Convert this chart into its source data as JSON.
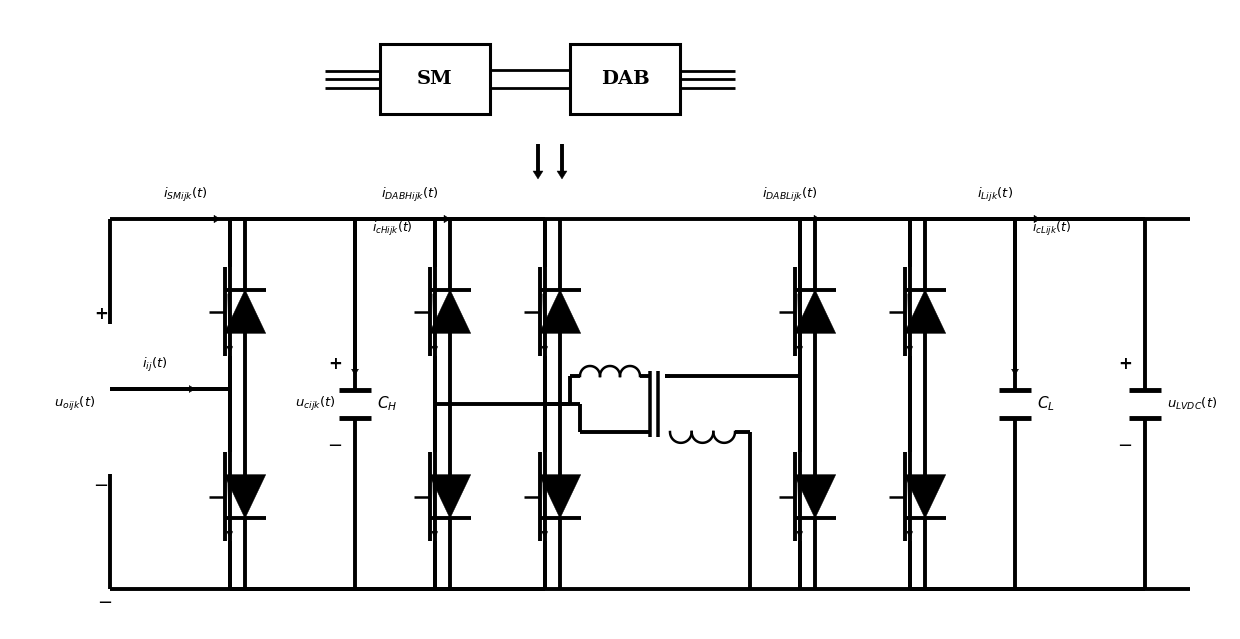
{
  "fig_w": 12.4,
  "fig_h": 6.39,
  "bg": "#ffffff",
  "lw": 1.8,
  "lw_t": 2.8,
  "lw_thick": 3.5
}
